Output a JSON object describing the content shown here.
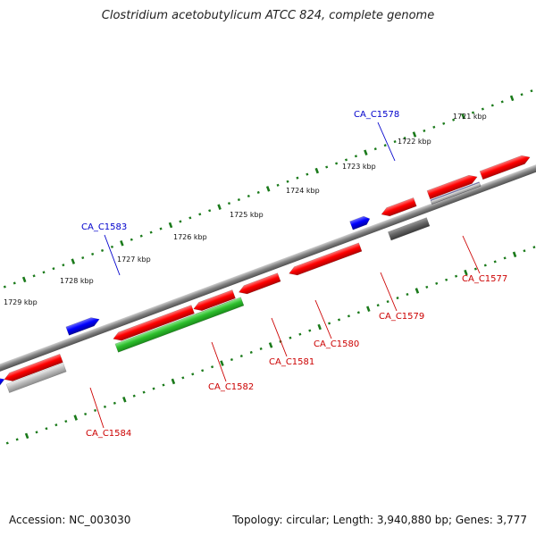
{
  "title": "Clostridium acetobutylicum ATCC 824, complete genome",
  "footer": {
    "accession": "Accession: NC_003030",
    "summary": "Topology: circular; Length: 3,940,880 bp; Genes: 3,777"
  },
  "colors": {
    "forward_gene": "#ff0000",
    "reverse_gene": "#ff0000",
    "blue_gene": "#0000ff",
    "green_gene": "#2dbf2d",
    "orange_gene": "#ff9900",
    "grey_gene": "#b5b5b5",
    "dark_grey_gene": "#666666",
    "navy_gene": "#22227a",
    "forward_label": "#0000cc",
    "reverse_label": "#cc0000",
    "tick": "#1a7a1a",
    "backbone": "#808080"
  },
  "ticks": [
    {
      "label": "1721 kbp"
    },
    {
      "label": "1722 kbp"
    },
    {
      "label": "1723 kbp"
    },
    {
      "label": "1724 kbp"
    },
    {
      "label": "1725 kbp"
    },
    {
      "label": "1726 kbp"
    },
    {
      "label": "1727 kbp"
    },
    {
      "label": "1728 kbp"
    },
    {
      "label": "1729 kbp"
    }
  ],
  "gene_labels": [
    {
      "name": "CA_C1578",
      "strand": "forward"
    },
    {
      "name": "CA_C1583",
      "strand": "forward"
    },
    {
      "name": "CA_C1577",
      "strand": "reverse"
    },
    {
      "name": "CA_C1579",
      "strand": "reverse"
    },
    {
      "name": "CA_C1580",
      "strand": "reverse"
    },
    {
      "name": "CA_C1581",
      "strand": "reverse"
    },
    {
      "name": "CA_C1582",
      "strand": "reverse"
    },
    {
      "name": "CA_C1584",
      "strand": "reverse"
    }
  ]
}
